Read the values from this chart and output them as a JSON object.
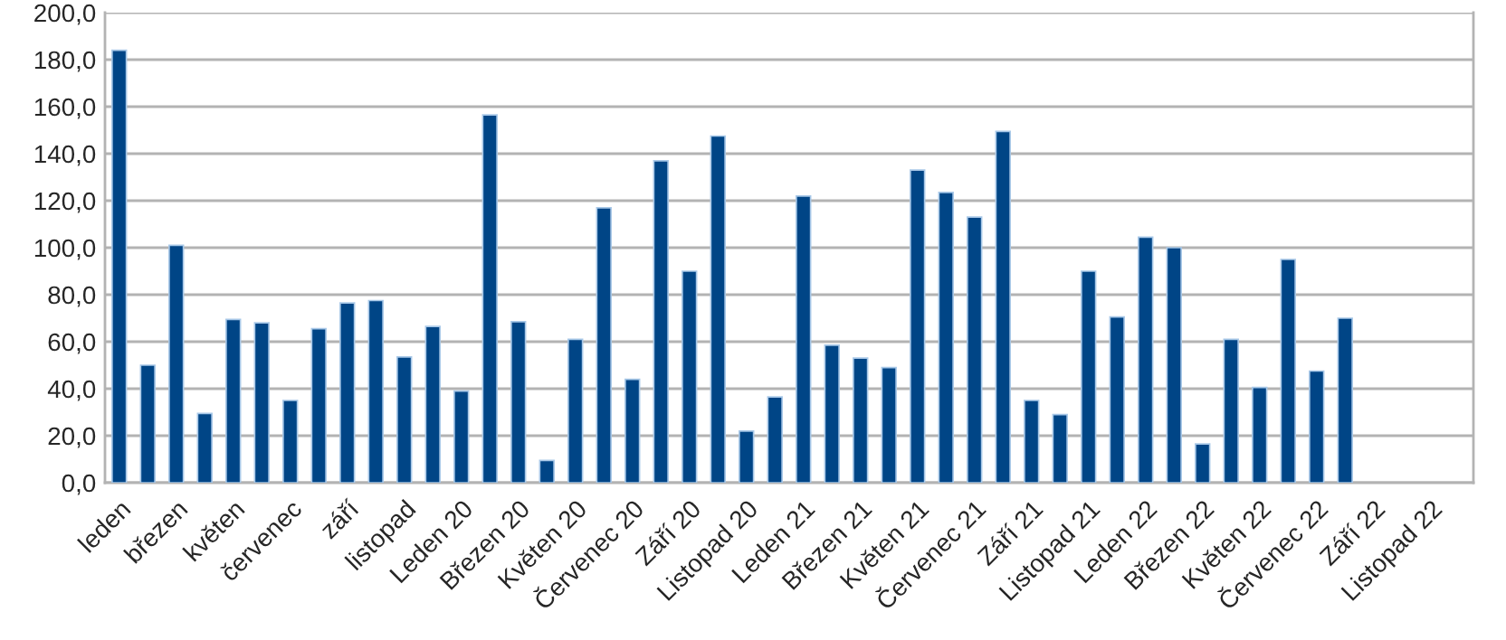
{
  "chart_data": {
    "type": "bar",
    "categories": [
      "leden",
      null,
      "březen",
      null,
      "květen",
      null,
      "červenec",
      null,
      "září",
      null,
      "listopad",
      null,
      "Leden 20",
      null,
      "Březen 20",
      null,
      "Květen 20",
      null,
      "Červenec 20",
      null,
      "Září 20",
      null,
      "Listopad 20",
      null,
      "Leden 21",
      null,
      "Březen 21",
      null,
      "Květen 21",
      null,
      "Červenec 21",
      null,
      "Září 21",
      null,
      "Listopad 21",
      null,
      "Leden 22",
      null,
      "Březen 22",
      null,
      "Květen 22",
      null,
      "Červenec 22",
      null,
      "Září 22",
      null,
      "Listopad 22",
      null
    ],
    "values": [
      184,
      50,
      101,
      29.5,
      69.5,
      68,
      35,
      65.5,
      76.5,
      77.5,
      53.5,
      66.5,
      39,
      156.5,
      68.5,
      9.5,
      61,
      117,
      44,
      137,
      90,
      147.5,
      22,
      36.5,
      122,
      58.5,
      53,
      49,
      133,
      123.5,
      113,
      149.5,
      35,
      29,
      90,
      70.5,
      104.5,
      100,
      16.5,
      61,
      40.5,
      95,
      47.5,
      70,
      null,
      null,
      null,
      null
    ],
    "color": "#004586",
    "ylim": [
      0,
      200
    ],
    "yticks": [
      {
        "value": 0,
        "label": "0,0"
      },
      {
        "value": 20,
        "label": "20,0"
      },
      {
        "value": 40,
        "label": "40,0"
      },
      {
        "value": 60,
        "label": "60,0"
      },
      {
        "value": 80,
        "label": "80,0"
      },
      {
        "value": 100,
        "label": "100,0"
      },
      {
        "value": 120,
        "label": "120,0"
      },
      {
        "value": 140,
        "label": "140,0"
      },
      {
        "value": 160,
        "label": "160,0"
      },
      {
        "value": 180,
        "label": "180,0"
      },
      {
        "value": 200,
        "label": "200,0"
      }
    ],
    "grid": "y"
  }
}
